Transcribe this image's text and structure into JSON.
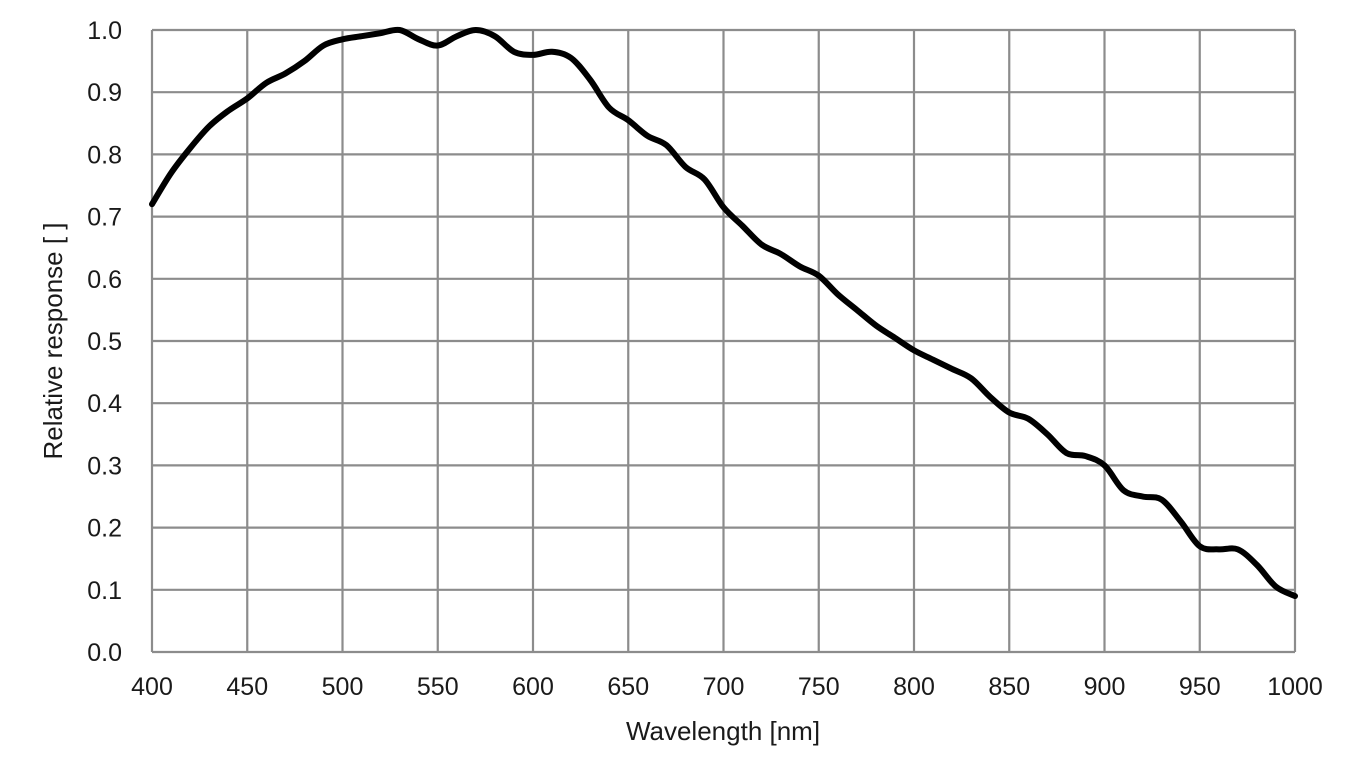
{
  "chart_data": {
    "type": "line",
    "title": "",
    "xlabel": "Wavelength [nm]",
    "ylabel": "Relative response [ ]",
    "xlim": [
      400,
      1000
    ],
    "ylim": [
      0.0,
      1.0
    ],
    "grid": true,
    "x_ticks": [
      "400",
      "450",
      "500",
      "550",
      "600",
      "650",
      "700",
      "750",
      "800",
      "850",
      "900",
      "950",
      "1000"
    ],
    "y_ticks": [
      "0.0",
      "0.1",
      "0.2",
      "0.3",
      "0.4",
      "0.5",
      "0.6",
      "0.7",
      "0.8",
      "0.9",
      "1.0"
    ],
    "series": [
      {
        "name": "Relative response",
        "color": "#000000",
        "x": [
          400,
          410,
          420,
          430,
          440,
          450,
          460,
          470,
          480,
          490,
          500,
          510,
          520,
          530,
          540,
          550,
          560,
          570,
          580,
          590,
          600,
          610,
          620,
          630,
          640,
          650,
          660,
          670,
          680,
          690,
          700,
          710,
          720,
          730,
          740,
          750,
          760,
          770,
          780,
          790,
          800,
          810,
          820,
          830,
          840,
          850,
          860,
          870,
          880,
          890,
          900,
          910,
          920,
          930,
          940,
          950,
          960,
          970,
          980,
          990,
          1000
        ],
        "y": [
          0.72,
          0.77,
          0.81,
          0.845,
          0.87,
          0.89,
          0.915,
          0.93,
          0.95,
          0.975,
          0.985,
          0.99,
          0.995,
          1.0,
          0.985,
          0.975,
          0.99,
          1.0,
          0.99,
          0.965,
          0.96,
          0.965,
          0.955,
          0.92,
          0.875,
          0.855,
          0.83,
          0.815,
          0.78,
          0.76,
          0.715,
          0.685,
          0.655,
          0.64,
          0.62,
          0.605,
          0.575,
          0.55,
          0.525,
          0.505,
          0.485,
          0.47,
          0.455,
          0.44,
          0.41,
          0.385,
          0.375,
          0.35,
          0.32,
          0.315,
          0.3,
          0.26,
          0.25,
          0.245,
          0.21,
          0.17,
          0.165,
          0.165,
          0.14,
          0.105,
          0.09
        ]
      }
    ]
  }
}
